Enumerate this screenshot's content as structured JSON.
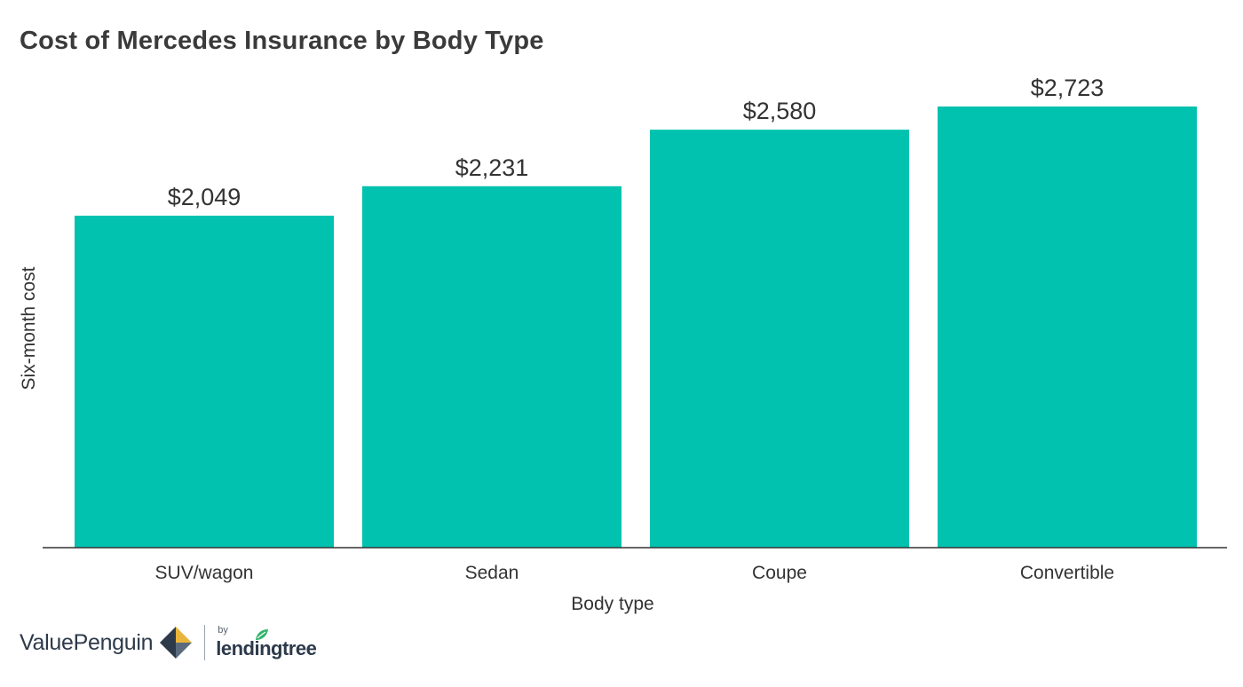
{
  "title": "Cost of Mercedes Insurance by Body Type",
  "chart_data": {
    "type": "bar",
    "title": "Cost of Mercedes Insurance by Body Type",
    "xlabel": "Body type",
    "ylabel": "Six-month cost",
    "categories": [
      "SUV/wagon",
      "Sedan",
      "Coupe",
      "Convertible"
    ],
    "values": [
      2049,
      2231,
      2580,
      2723
    ],
    "value_labels": [
      "$2,049",
      "$2,231",
      "$2,580",
      "$2,723"
    ],
    "ylim": [
      0,
      2723
    ],
    "grid": false,
    "legend": "none",
    "bar_color": "#00c2ae"
  },
  "footer": {
    "brand": "ValuePenguin",
    "by": "by",
    "partner": "lendingtree",
    "brand_icon": "valuepenguin-logo-icon",
    "partner_icon": "lendingtree-leaf-icon"
  },
  "colors": {
    "bar": "#00c2ae",
    "axis": "#333333",
    "text": "#333333",
    "brand_navy": "#2d3a4a",
    "brand_gold": "#e9b43a",
    "leaf_green": "#33b36b"
  }
}
